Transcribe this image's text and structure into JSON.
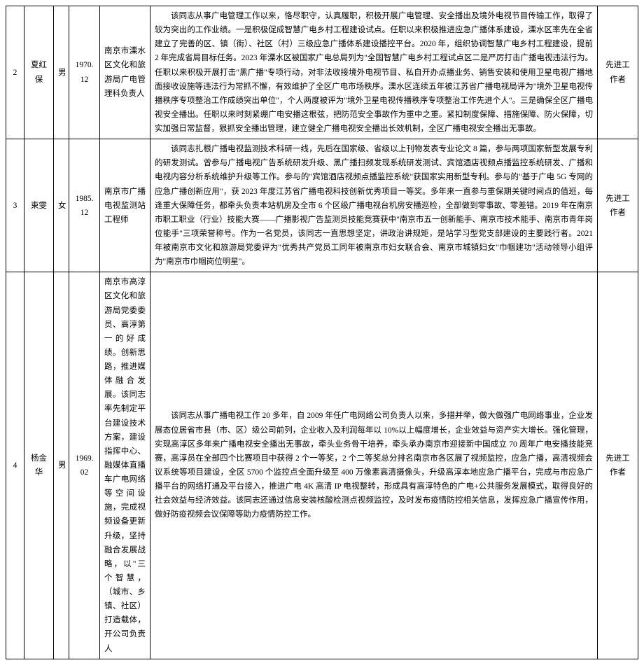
{
  "rows": [
    {
      "idx": "2",
      "name": "夏红保",
      "gender": "男",
      "birth": "1970.12",
      "unit": "南京市溧水区文化和旅游局广电管理科负责人",
      "desc": "该同志从事广电管理工作以来，恪尽职守，认真履职，积极开展广电管理、安全播出及境外电视节目传输工作，取得了较为突出的工作业绩。一是积极促成智慧广电乡村工程建设试点。任职以来积极推进应急广播体系建设，溧水区率先在全省建立了完善的区、镇（街）、社区（村）三级应急广播体系建设播控平台。2020 年，组织协调智慧广电乡村工程建设，提前 2 年完成省局目标任务。2023 年溧水区被国家广电总局列为\"全国智慧广电乡村工程试点区二是严厉打击广播电视违法行为。任职以来积极开展打击\"黑广播\"专项行动，对非法收接境外电视节目、私自开办点播业务、销售安装和使用卫星电视广播地面接收设施等违法行为常抓不懈，有效维护了全区广电市场秩序。溧水区连续五年被江苏省广播电视局评为\"境外卫星电视传播秩序专项整治工作成绩突出单位\"，个人两度被评为\"境外卫星电视传播秩序专项整治工作先进个人\"。三是确保全区广播电视安全播出。任职以来时刻紧绷广电安播这根弦，把防范安全事故作为重中之重。紧扣制度保障、措施保障、防火保障，切实加强日常监督，狠抓安全播出管理，建立健全广播电视安全播出长效机制，全区广播电视安全播出无事故。",
      "award": "先进工作者"
    },
    {
      "idx": "3",
      "name": "束雯",
      "gender": "女",
      "birth": "1985.12",
      "unit": "南京市广播电视监测站工程师",
      "desc": "该同志扎根广播电视监测技术科研一线，先后在国家级、省级以上刊物发表专业论文 8 篇，参与两项国家新型发展专利的研发测试。曾参与广播电视广告系统研发升级、黑广播扫频发现系统研发测试、宾馆酒店视频点播监控系统研发、广播和电视内容分析系统维护升级等工作。参与的\"宾馆酒店视频点播监控系统\"获国家实用新型专利。参与的\"基于广电 5G 专网的应急广播创新应用\"，获 2023 年度江苏省广播电视科技创新优秀项目一等奖。多年来一直参与重保期关键时间点的值班，每逢重大保障任务，都牵头负责本站机房及全市 6 个区级广播电视台机房安播巡检，全部做到零事故、零差错。2019 年在南京市职工职业（行业）技能大赛——广播影视广告监测员技能竞赛获中\"南京市五一创新能手、南京市技术能手、南京市青年岗位能手\"三项荣誉称号。作为一名党员，该同志一直思想坚定，讲政治讲规矩，是站学习型党支部建设的主要践行者。2021 年被南京市文化和旅游局党委评为\"优秀共产党员工同年被南京市妇女联合会、南京市城镇妇女\"巾帼建功\"活动领导小组评为\"南京市巾帼岗位明星\"。",
      "award": "先进工作者"
    },
    {
      "idx": "4",
      "name": "杨金华",
      "gender": "男",
      "birth": "1969.02",
      "unit": "南京市高淳区文化和旅游局党委委员、高淳第一的好成绩。创新思路，推进媒体融合发展。该同志率先制定平台建设技术方案，建设指挥中心、融媒体直播车广电网络等空间设施，完成视频设备更新升级，坚持融合发展战略，以\"三个智慧，（城市、乡镇、社区）打造载体，开公司负责人",
      "desc": "该同志从事广播电视工作 20 多年，自 2009 年任广电网络公司负责人以来，多措并举，做大做强广电网络事业，企业发展态位居省市县（市、区）级公司前列，企业收入及利润每年以 10%以上幅度增长，企业效益与资产实大增长。强化管理，实现高淳区多年来广播电视安全播出无事故，牵头业务骨干培养，牵头承办南京市迎接新中国成立 70 周年广电安播技能竞赛，高淳员在全部四个比赛项目中获得 2 个一等奖，2 个二等奖总分排名南京市各区展了视频监控，应急广播，高清视频会议系统等项目建设，全区 5700 个监控点全面升级至 400 万像素高清摄像头，升级高淳本地应急广播平台，完成与市应急广播平台的网络打通及平台接入，推进广电 4K 高清 IP 电视整转，形成具有高淳特色的广电+公共服务发展模式，取得良好的社会效益与经济效益。该同志还通过信息安装核酸检测点视频监控，及时发布疫情防控相关信息，发挥应急广播宣传作用，做好防疫视频会议保障等助力疫情防控工作。",
      "award": "先进工作者"
    }
  ]
}
